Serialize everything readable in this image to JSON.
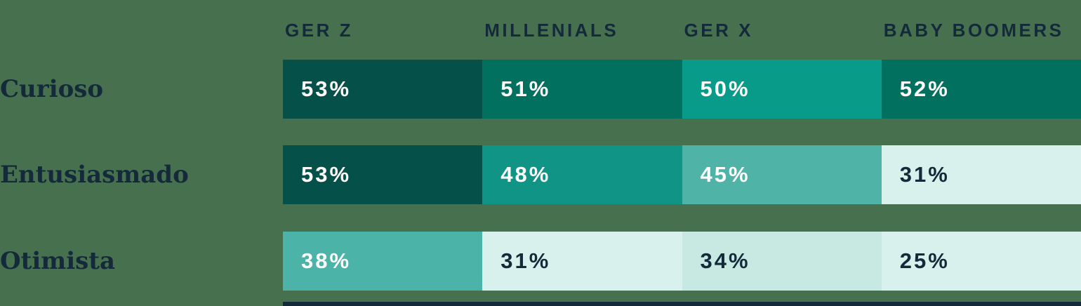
{
  "colors": {
    "background": "#47714E",
    "dark_text": "#14293A",
    "light_text": "#FFFFFF",
    "baseline_bar": "#14293A"
  },
  "chart_data": {
    "type": "heatmap",
    "categories": [
      "GER Z",
      "MILLENIALS",
      "GER X",
      "BABY BOOMERS"
    ],
    "unit": "%",
    "legend_position": "none",
    "rows": [
      {
        "label": "Curioso",
        "values": [
          53,
          51,
          50,
          52
        ],
        "display": [
          "53%",
          "51%",
          "50%",
          "52%"
        ],
        "cell_colors": [
          "#05514A",
          "#02705F",
          "#089B89",
          "#02705F"
        ],
        "text_colors": [
          "#FFFFFF",
          "#FFFFFF",
          "#FFFFFF",
          "#FFFFFF"
        ]
      },
      {
        "label": "Entusiasmado",
        "values": [
          53,
          48,
          45,
          31
        ],
        "display": [
          "53%",
          "48%",
          "45%",
          "31%"
        ],
        "cell_colors": [
          "#05514A",
          "#0F9486",
          "#4FB3A8",
          "#D9F1ED"
        ],
        "text_colors": [
          "#FFFFFF",
          "#FFFFFF",
          "#FFFFFF",
          "#14293A"
        ]
      },
      {
        "label": "Otimista",
        "values": [
          38,
          31,
          34,
          25
        ],
        "display": [
          "38%",
          "31%",
          "34%",
          "25%"
        ],
        "cell_colors": [
          "#4BB3A7",
          "#D9F1ED",
          "#C7E9E2",
          "#D9F1ED"
        ],
        "text_colors": [
          "#FFFFFF",
          "#14293A",
          "#14293A",
          "#14293A"
        ]
      }
    ]
  }
}
